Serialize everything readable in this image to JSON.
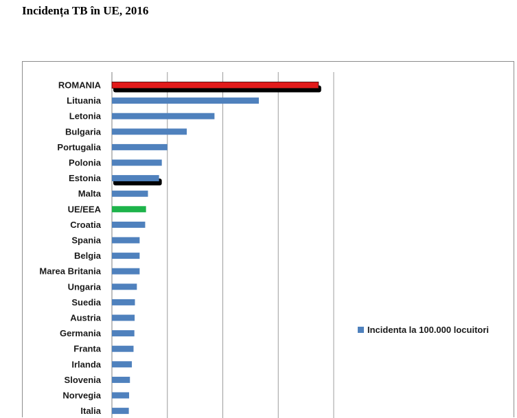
{
  "page": {
    "title": "Incidența TB în UE, 2016"
  },
  "chart_data": {
    "type": "bar",
    "orientation": "horizontal",
    "categories": [
      "ROMANIA",
      "Lituania",
      "Letonia",
      "Bulgaria",
      "Portugalia",
      "Polonia",
      "Estonia",
      "Malta",
      "UE/EEA",
      "Croatia",
      "Spania",
      "Belgia",
      "Marea Britania",
      "Ungaria",
      "Suedia",
      "Austria",
      "Germania",
      "Franta",
      "Irlanda",
      "Slovenia",
      "Norvegia",
      "Italia"
    ],
    "series": [
      {
        "name": "Incidenta la 100.000 locuitori",
        "values": [
          74.5,
          53,
          37,
          27,
          20,
          18,
          17,
          13,
          12.3,
          12,
          10,
          10,
          10,
          9,
          8.3,
          8.2,
          8.1,
          7.8,
          7.2,
          6.5,
          6.2,
          6.1
        ]
      }
    ],
    "highlights": {
      "ROMANIA": "#e21a1a",
      "UE/EEA": "#1db34a",
      "Estonia": "#4f81bd"
    },
    "colors": {
      "default_bar": "#4f81bd",
      "romania": "#e21a1a",
      "eu_average": "#1db34a",
      "shadow": "#000000"
    },
    "xlim": [
      0,
      80
    ],
    "grid": "vertical",
    "legend": "right",
    "title": "",
    "xlabel": "",
    "ylabel": ""
  }
}
